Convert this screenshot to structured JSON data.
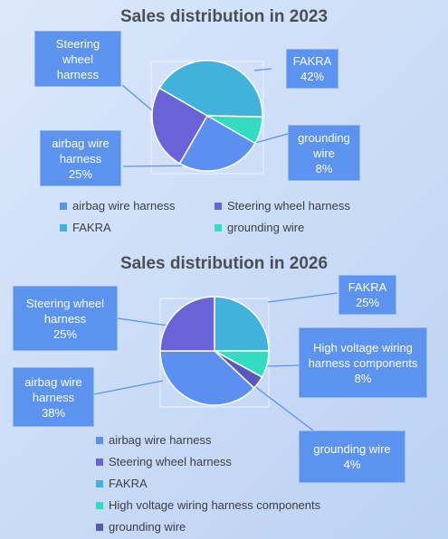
{
  "chart_data": [
    {
      "type": "pie",
      "title": "Sales distribution in 2023",
      "slices": [
        {
          "label": "airbag wire harness",
          "value": 25,
          "color": "#5b8ff0",
          "callout_lines": [
            "airbag wire",
            "harness",
            "25%"
          ]
        },
        {
          "label": "Steering wheel harness",
          "value": 25,
          "color": "#6a63d8",
          "callout_lines": [
            "Steering",
            "wheel",
            "harness"
          ]
        },
        {
          "label": "FAKRA",
          "value": 42,
          "color": "#41b2da",
          "callout_lines": [
            "FAKRA",
            "42%"
          ]
        },
        {
          "label": "grounding wire",
          "value": 8,
          "color": "#33dcc0",
          "callout_lines": [
            "grounding",
            "wire",
            "8%"
          ]
        }
      ],
      "legend": [
        "airbag wire harness",
        "Steering wheel harness",
        "FAKRA",
        "grounding wire"
      ],
      "legend_position": "bottom"
    },
    {
      "type": "pie",
      "title": "Sales distribution in 2026",
      "slices": [
        {
          "label": "airbag wire harness",
          "value": 38,
          "color": "#5b8ff0",
          "callout_lines": [
            "airbag wire",
            "harness",
            "38%"
          ]
        },
        {
          "label": "Steering wheel harness",
          "value": 25,
          "color": "#6a63d8",
          "callout_lines": [
            "Steering wheel",
            "harness",
            "25%"
          ]
        },
        {
          "label": "FAKRA",
          "value": 25,
          "color": "#41b2da",
          "callout_lines": [
            "FAKRA",
            "25%"
          ]
        },
        {
          "label": "High voltage wiring harness components",
          "value": 8,
          "color": "#33dcc0",
          "callout_lines": [
            "High voltage wiring",
            "harness components",
            "8%"
          ]
        },
        {
          "label": "grounding wire",
          "value": 4,
          "color": "#5a58b8",
          "callout_lines": [
            "grounding wire",
            "4%"
          ]
        }
      ],
      "legend": [
        "airbag wire harness",
        "Steering wheel harness",
        "FAKRA",
        "High voltage wiring harness components",
        "grounding wire"
      ],
      "legend_position": "bottom"
    }
  ]
}
